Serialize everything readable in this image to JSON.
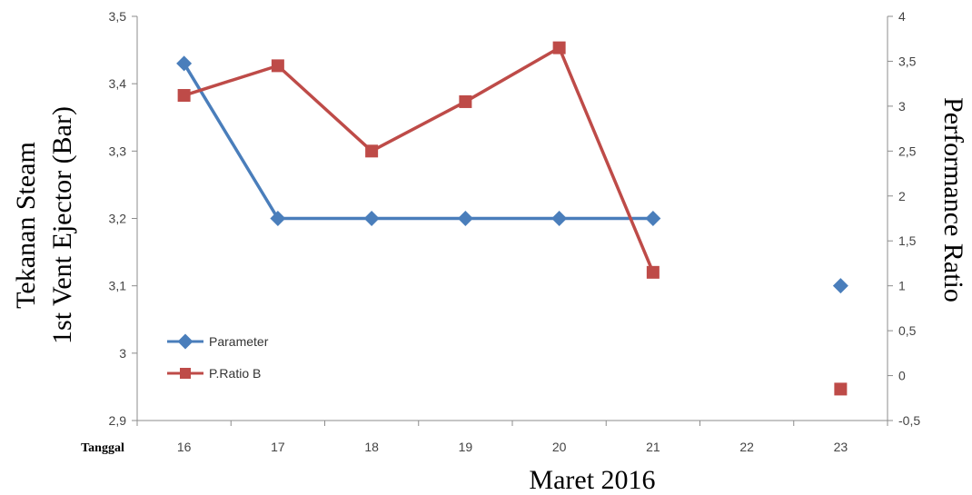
{
  "chart_data": {
    "type": "line",
    "x_axis_label": "Maret 2016",
    "x_side_label": "Tanggal",
    "categories": [
      "16",
      "17",
      "18",
      "19",
      "20",
      "21",
      "22",
      "23"
    ],
    "y_left": {
      "label_line1": "Tekanan Steam",
      "label_line2": "1st Vent Ejector (Bar)",
      "range": [
        2.9,
        3.5
      ],
      "ticks": [
        "2,9",
        "3",
        "3,1",
        "3,2",
        "3,3",
        "3,4",
        "3,5"
      ]
    },
    "y_right": {
      "label": "Performance Ratio",
      "range": [
        -0.5,
        4
      ],
      "ticks": [
        "-0,5",
        "0",
        "0,5",
        "1",
        "1,5",
        "2",
        "2,5",
        "3",
        "3,5",
        "4"
      ]
    },
    "series": [
      {
        "name": "Parameter",
        "axis": "left",
        "color": "#4a7ebb",
        "marker": "diamond",
        "values": [
          3.43,
          3.2,
          3.2,
          3.2,
          3.2,
          3.2,
          null,
          3.1
        ]
      },
      {
        "name": "P.Ratio B",
        "axis": "right",
        "color": "#be4b48",
        "marker": "square",
        "values": [
          3.12,
          3.45,
          2.5,
          3.05,
          3.65,
          1.15,
          null,
          -0.15
        ]
      }
    ],
    "legend_position": "lower-left inside plot",
    "grid": false
  }
}
